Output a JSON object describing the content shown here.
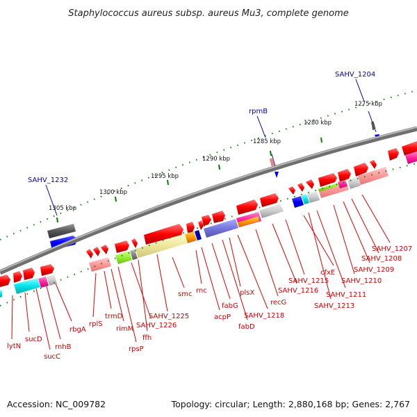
{
  "header": {
    "title": "Staphylococcus aureus subsp. aureus Mu3, complete genome"
  },
  "footer": {
    "accession": "Accession: NC_009782",
    "summary": "Topology: circular; Length: 2,880,168 bp; Genes: 2,767"
  },
  "scale": {
    "ticks": [
      "1305 kbp",
      "1300 kbp",
      "1295 kbp",
      "1290 kbp",
      "1285 kbp",
      "1280 kbp",
      "1275 kbp"
    ]
  },
  "outer_labels": [
    "SAHV_1232",
    "rpmB",
    "SAHV_1204"
  ],
  "gene_labels": [
    "lytN",
    "sucD",
    "sucC",
    "rnhB",
    "rbgA",
    "rplS",
    "trmD",
    "rimM",
    "rpsP",
    "SAHV_1226",
    "ffh",
    "SAHV_1225",
    "smc",
    "rnc",
    "acpP",
    "fabG",
    "fabD",
    "plsX",
    "SAHV_1218",
    "recG",
    "SAHV_1216",
    "SAHV_1215",
    "cfxE",
    "SAHV_1213",
    "SAHV_1211",
    "SAHV_1210",
    "SAHV_1209",
    "SAHV_1208",
    "SAHV_1207"
  ],
  "colors": {
    "forward": "#ff0000",
    "backbone": "#888888",
    "leader_red": "#e00000",
    "leader_blue": "#0000aa",
    "tick": "#008000"
  }
}
